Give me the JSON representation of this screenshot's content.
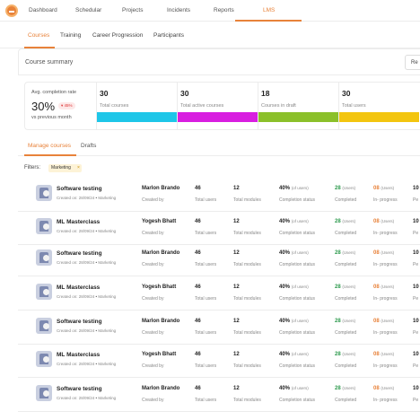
{
  "nav": {
    "items": [
      "Dashboard",
      "Schedular",
      "Projects",
      "Incidents",
      "Reports",
      "LMS"
    ],
    "active": "LMS"
  },
  "subtabs": {
    "items": [
      "Courses",
      "Training",
      "Career Progression",
      "Participants"
    ],
    "active": "Courses"
  },
  "summary": {
    "title": "Course summary",
    "button_label": "Re"
  },
  "stats": {
    "avg_label": "Avg. completion rate",
    "avg_value": "30%",
    "avg_delta": "▾ 45%",
    "avg_sub": "vs previous month",
    "cards": [
      {
        "value": "30",
        "label": "Total courses",
        "color": "#1ec6e8"
      },
      {
        "value": "30",
        "label": "Total active courses",
        "color": "#d81ee0"
      },
      {
        "value": "18",
        "label": "Courses in draft",
        "color": "#8bc02a"
      },
      {
        "value": "30",
        "label": "Total users",
        "color": "#f3c50f"
      }
    ]
  },
  "manage_tabs": {
    "items": [
      "Manage courses",
      "Drafts"
    ],
    "active": "Manage courses"
  },
  "filters": {
    "label": "Filters:",
    "chip": "Marketing",
    "chip_close": "×"
  },
  "columns": {
    "created_by": "Created by",
    "total_users": "Total users",
    "total_modules": "Total modules",
    "completion_status": "Completion status",
    "completed": "Completed",
    "in_progress": "In- progress",
    "pending": "Pe"
  },
  "rows": [
    {
      "title": "Software testing",
      "created_on": "Created on: 28/09/24",
      "tag": "Marketing",
      "creator": "Marlon Brando",
      "users": "46",
      "modules": "12",
      "percent": "40%",
      "of_users": "(of users)",
      "completed": "28",
      "completed_unit": "(Users)",
      "in_progress": "08",
      "in_progress_unit": "(Users)",
      "pending": "10"
    },
    {
      "title": "ML Masterclass",
      "created_on": "Created on: 28/09/24",
      "tag": "Marketing",
      "creator": "Yogesh Bhatt",
      "users": "46",
      "modules": "12",
      "percent": "40%",
      "of_users": "(of users)",
      "completed": "28",
      "completed_unit": "(Users)",
      "in_progress": "08",
      "in_progress_unit": "(Users)",
      "pending": "10"
    },
    {
      "title": "Software testing",
      "created_on": "Created on: 28/09/24",
      "tag": "Marketing",
      "creator": "Marlon Brando",
      "users": "46",
      "modules": "12",
      "percent": "40%",
      "of_users": "(of users)",
      "completed": "28",
      "completed_unit": "(Users)",
      "in_progress": "08",
      "in_progress_unit": "(Users)",
      "pending": "10"
    },
    {
      "title": "ML Masterclass",
      "created_on": "Created on: 28/09/24",
      "tag": "Marketing",
      "creator": "Yogesh Bhatt",
      "users": "46",
      "modules": "12",
      "percent": "40%",
      "of_users": "(of users)",
      "completed": "28",
      "completed_unit": "(Users)",
      "in_progress": "08",
      "in_progress_unit": "(Users)",
      "pending": "10"
    },
    {
      "title": "Software testing",
      "created_on": "Created on: 28/09/24",
      "tag": "Marketing",
      "creator": "Marlon Brando",
      "users": "46",
      "modules": "12",
      "percent": "40%",
      "of_users": "(of users)",
      "completed": "28",
      "completed_unit": "(Users)",
      "in_progress": "08",
      "in_progress_unit": "(Users)",
      "pending": "10"
    },
    {
      "title": "ML Masterclass",
      "created_on": "Created on: 28/09/24",
      "tag": "Marketing",
      "creator": "Yogesh Bhatt",
      "users": "46",
      "modules": "12",
      "percent": "40%",
      "of_users": "(of users)",
      "completed": "28",
      "completed_unit": "(Users)",
      "in_progress": "08",
      "in_progress_unit": "(Users)",
      "pending": "10"
    },
    {
      "title": "Software testing",
      "created_on": "Created on: 28/09/24",
      "tag": "Marketing",
      "creator": "Marlon Brando",
      "users": "46",
      "modules": "12",
      "percent": "40%",
      "of_users": "(of users)",
      "completed": "28",
      "completed_unit": "(Users)",
      "in_progress": "08",
      "in_progress_unit": "(Users)",
      "pending": "10"
    }
  ],
  "colors": {
    "accent": "#e8823a",
    "completed": "#2d9a4d"
  }
}
